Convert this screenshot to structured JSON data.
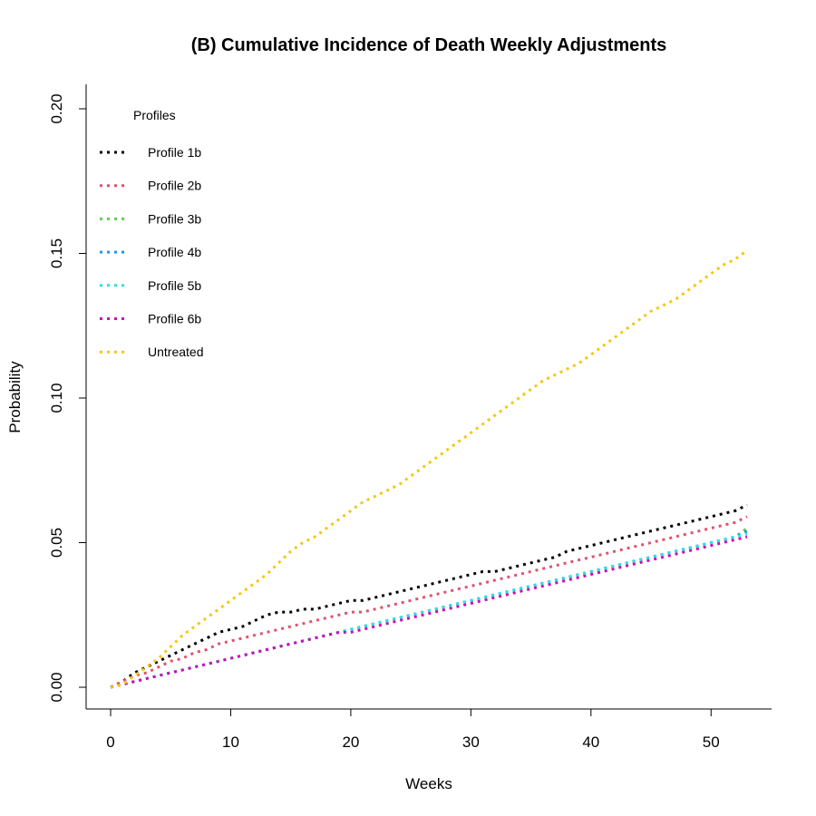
{
  "chart_data": {
    "type": "line",
    "title": "(B) Cumulative Incidence of Death Weekly Adjustments",
    "xlabel": "Weeks",
    "ylabel": "Probability",
    "xlim": [
      0,
      53
    ],
    "ylim": [
      0,
      0.2
    ],
    "x_ticks": [
      "0",
      "10",
      "20",
      "30",
      "40",
      "50"
    ],
    "x_tick_values": [
      0,
      10,
      20,
      30,
      40,
      50
    ],
    "y_ticks": [
      "0.00",
      "0.05",
      "0.10",
      "0.15",
      "0.20"
    ],
    "y_tick_values": [
      0,
      0.05,
      0.1,
      0.15,
      0.2
    ],
    "grid": false,
    "legend": {
      "title": "Profiles",
      "position": "top-left"
    },
    "x": [
      0,
      1,
      2,
      3,
      4,
      5,
      6,
      7,
      8,
      9,
      10,
      11,
      12,
      13,
      14,
      15,
      16,
      17,
      18,
      19,
      20,
      21,
      22,
      23,
      24,
      25,
      26,
      27,
      28,
      29,
      30,
      31,
      32,
      33,
      34,
      35,
      36,
      37,
      38,
      39,
      40,
      41,
      42,
      43,
      44,
      45,
      46,
      47,
      48,
      49,
      50,
      51,
      52,
      53
    ],
    "series": [
      {
        "name": "Profile 1b",
        "color": "#000000",
        "values": [
          0,
          0.002,
          0.005,
          0.007,
          0.009,
          0.011,
          0.013,
          0.015,
          0.017,
          0.019,
          0.02,
          0.021,
          0.023,
          0.025,
          0.026,
          0.026,
          0.027,
          0.027,
          0.028,
          0.029,
          0.03,
          0.03,
          0.031,
          0.032,
          0.033,
          0.034,
          0.035,
          0.036,
          0.037,
          0.038,
          0.039,
          0.04,
          0.04,
          0.041,
          0.042,
          0.043,
          0.044,
          0.045,
          0.047,
          0.048,
          0.049,
          0.05,
          0.051,
          0.052,
          0.053,
          0.054,
          0.055,
          0.056,
          0.057,
          0.058,
          0.059,
          0.06,
          0.061,
          0.063
        ]
      },
      {
        "name": "Profile 2b",
        "color": "#DF536B",
        "values": [
          0,
          0.002,
          0.004,
          0.005,
          0.007,
          0.009,
          0.01,
          0.012,
          0.013,
          0.015,
          0.016,
          0.017,
          0.018,
          0.019,
          0.02,
          0.021,
          0.022,
          0.023,
          0.024,
          0.025,
          0.026,
          0.026,
          0.027,
          0.028,
          0.029,
          0.03,
          0.031,
          0.032,
          0.033,
          0.034,
          0.035,
          0.036,
          0.037,
          0.038,
          0.039,
          0.04,
          0.041,
          0.042,
          0.043,
          0.044,
          0.045,
          0.046,
          0.047,
          0.048,
          0.049,
          0.05,
          0.051,
          0.052,
          0.053,
          0.054,
          0.055,
          0.056,
          0.057,
          0.059
        ]
      },
      {
        "name": "Profile 3b",
        "color": "#61D04F",
        "values": [
          0,
          0.001,
          0.002,
          0.003,
          0.004,
          0.005,
          0.006,
          0.007,
          0.008,
          0.009,
          0.01,
          0.011,
          0.012,
          0.013,
          0.014,
          0.015,
          0.016,
          0.017,
          0.018,
          0.019,
          0.02,
          0.021,
          0.022,
          0.023,
          0.024,
          0.025,
          0.026,
          0.027,
          0.028,
          0.029,
          0.03,
          0.031,
          0.032,
          0.033,
          0.034,
          0.035,
          0.036,
          0.037,
          0.038,
          0.039,
          0.04,
          0.041,
          0.042,
          0.043,
          0.044,
          0.045,
          0.046,
          0.047,
          0.048,
          0.049,
          0.05,
          0.051,
          0.052,
          0.055
        ]
      },
      {
        "name": "Profile 4b",
        "color": "#2297E6",
        "values": [
          0,
          0.001,
          0.002,
          0.003,
          0.004,
          0.005,
          0.006,
          0.007,
          0.008,
          0.009,
          0.01,
          0.011,
          0.012,
          0.013,
          0.014,
          0.015,
          0.016,
          0.017,
          0.018,
          0.019,
          0.02,
          0.021,
          0.022,
          0.023,
          0.024,
          0.025,
          0.026,
          0.027,
          0.028,
          0.029,
          0.03,
          0.031,
          0.032,
          0.033,
          0.034,
          0.035,
          0.036,
          0.037,
          0.038,
          0.039,
          0.04,
          0.041,
          0.042,
          0.043,
          0.044,
          0.045,
          0.046,
          0.047,
          0.048,
          0.049,
          0.05,
          0.051,
          0.052,
          0.054
        ]
      },
      {
        "name": "Profile 5b",
        "color": "#28E2E5",
        "values": [
          0,
          0.001,
          0.002,
          0.003,
          0.004,
          0.005,
          0.006,
          0.007,
          0.008,
          0.009,
          0.01,
          0.011,
          0.012,
          0.013,
          0.014,
          0.015,
          0.016,
          0.017,
          0.018,
          0.019,
          0.02,
          0.021,
          0.022,
          0.023,
          0.024,
          0.025,
          0.026,
          0.027,
          0.028,
          0.029,
          0.03,
          0.031,
          0.032,
          0.033,
          0.034,
          0.035,
          0.036,
          0.037,
          0.038,
          0.039,
          0.04,
          0.041,
          0.042,
          0.043,
          0.044,
          0.045,
          0.046,
          0.047,
          0.048,
          0.049,
          0.05,
          0.051,
          0.052,
          0.053
        ]
      },
      {
        "name": "Profile 6b",
        "color": "#CD0BBC",
        "values": [
          0,
          0.001,
          0.002,
          0.003,
          0.004,
          0.005,
          0.006,
          0.007,
          0.008,
          0.009,
          0.01,
          0.011,
          0.012,
          0.013,
          0.014,
          0.015,
          0.016,
          0.017,
          0.018,
          0.019,
          0.019,
          0.02,
          0.021,
          0.022,
          0.023,
          0.024,
          0.025,
          0.026,
          0.027,
          0.028,
          0.029,
          0.03,
          0.031,
          0.032,
          0.033,
          0.034,
          0.035,
          0.036,
          0.037,
          0.038,
          0.039,
          0.04,
          0.041,
          0.042,
          0.043,
          0.044,
          0.045,
          0.046,
          0.047,
          0.048,
          0.049,
          0.05,
          0.051,
          0.052
        ]
      },
      {
        "name": "Untreated",
        "color": "#F5C710",
        "values": [
          0,
          0.001,
          0.004,
          0.007,
          0.01,
          0.014,
          0.018,
          0.021,
          0.024,
          0.027,
          0.03,
          0.033,
          0.036,
          0.039,
          0.043,
          0.047,
          0.05,
          0.052,
          0.055,
          0.058,
          0.061,
          0.064,
          0.066,
          0.068,
          0.07,
          0.073,
          0.076,
          0.079,
          0.082,
          0.085,
          0.088,
          0.091,
          0.094,
          0.097,
          0.1,
          0.103,
          0.106,
          0.108,
          0.11,
          0.112,
          0.115,
          0.118,
          0.121,
          0.124,
          0.127,
          0.13,
          0.132,
          0.134,
          0.137,
          0.14,
          0.143,
          0.146,
          0.148,
          0.151
        ]
      }
    ]
  }
}
